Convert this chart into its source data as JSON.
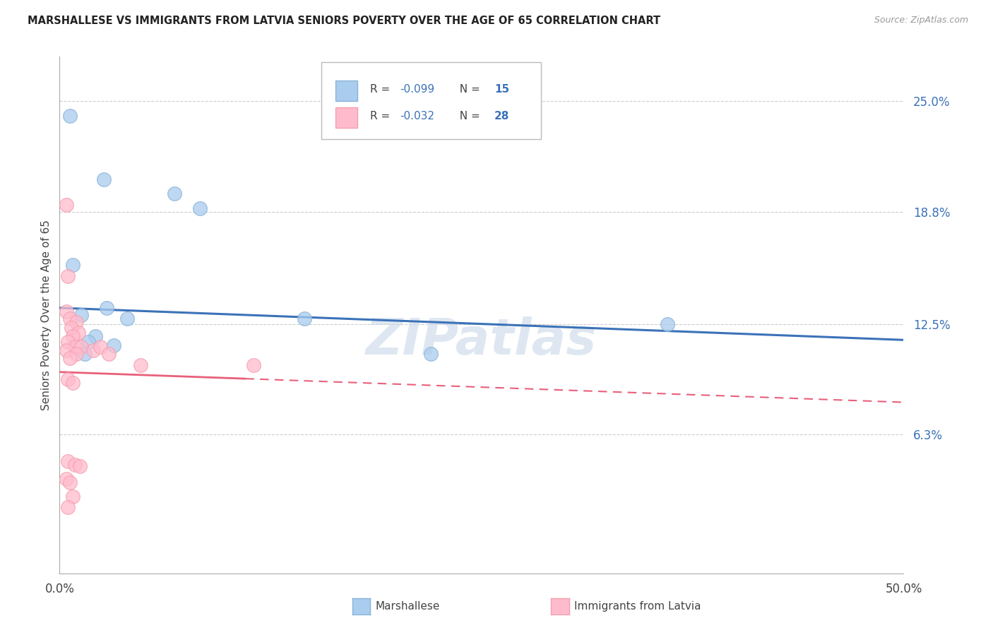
{
  "title": "MARSHALLESE VS IMMIGRANTS FROM LATVIA SENIORS POVERTY OVER THE AGE OF 65 CORRELATION CHART",
  "source": "Source: ZipAtlas.com",
  "ylabel": "Seniors Poverty Over the Age of 65",
  "ytick_values": [
    6.3,
    12.5,
    18.8,
    25.0
  ],
  "xlim": [
    0.0,
    50.0
  ],
  "ylim": [
    -1.5,
    27.5
  ],
  "legend_r1": "R = -0.099",
  "legend_n1": "N = 15",
  "legend_r2": "R = -0.032",
  "legend_n2": "N = 28",
  "blue_color": "#89B4D9",
  "pink_color": "#F4A0B0",
  "blue_fill": "#AACCEE",
  "pink_fill": "#FFBBCC",
  "blue_line_color": "#3B72B8",
  "pink_line_color": "#E8607A",
  "watermark": "ZIPatlas",
  "r_color": "#3B72B8",
  "n_color": "#3B72B8",
  "blue_line_y0": 13.4,
  "blue_line_y1": 11.6,
  "pink_line_y0": 9.8,
  "pink_line_y1": 8.1,
  "pink_solid_end_x": 11.0,
  "blue_points": [
    [
      0.6,
      24.2
    ],
    [
      2.6,
      20.6
    ],
    [
      6.8,
      19.8
    ],
    [
      8.3,
      19.0
    ],
    [
      0.8,
      15.8
    ],
    [
      2.8,
      13.4
    ],
    [
      1.3,
      13.0
    ],
    [
      4.0,
      12.8
    ],
    [
      2.1,
      11.8
    ],
    [
      1.7,
      11.5
    ],
    [
      3.2,
      11.3
    ],
    [
      1.5,
      10.8
    ],
    [
      14.5,
      12.8
    ],
    [
      36.0,
      12.5
    ],
    [
      22.0,
      10.8
    ]
  ],
  "pink_points": [
    [
      0.4,
      19.2
    ],
    [
      0.5,
      15.2
    ],
    [
      0.4,
      13.2
    ],
    [
      0.6,
      12.8
    ],
    [
      1.0,
      12.6
    ],
    [
      0.7,
      12.3
    ],
    [
      1.1,
      12.0
    ],
    [
      0.8,
      11.8
    ],
    [
      0.5,
      11.5
    ],
    [
      0.9,
      11.2
    ],
    [
      1.3,
      11.2
    ],
    [
      0.4,
      11.0
    ],
    [
      1.0,
      10.8
    ],
    [
      0.6,
      10.6
    ],
    [
      2.0,
      11.0
    ],
    [
      2.4,
      11.2
    ],
    [
      2.9,
      10.8
    ],
    [
      4.8,
      10.2
    ],
    [
      11.5,
      10.2
    ],
    [
      0.5,
      9.4
    ],
    [
      0.8,
      9.2
    ],
    [
      0.5,
      4.8
    ],
    [
      0.9,
      4.6
    ],
    [
      1.2,
      4.5
    ],
    [
      0.4,
      3.8
    ],
    [
      0.6,
      3.6
    ],
    [
      0.8,
      2.8
    ],
    [
      0.5,
      2.2
    ]
  ]
}
